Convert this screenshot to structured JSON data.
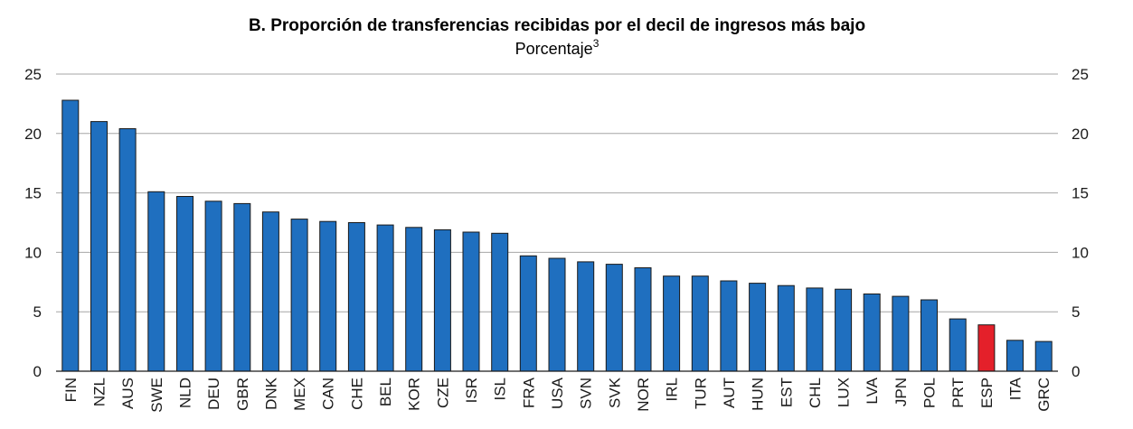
{
  "chart_data": {
    "type": "bar",
    "title": "B. Proporción de transferencias recibidas por el decil de ingresos más bajo",
    "subtitle": "Porcentaje",
    "subtitle_footnote": "3",
    "xlabel": "",
    "ylabel": "",
    "ylim": [
      0,
      25
    ],
    "yticks": [
      0,
      5,
      10,
      15,
      20,
      25
    ],
    "grid": true,
    "axis_sides": "left-and-right",
    "colors": {
      "default": "#1f6fbf",
      "highlight": "#e4202a",
      "grid": "#a6a6a6",
      "text": "#1a1a1a"
    },
    "highlight_category": "ESP",
    "categories": [
      "FIN",
      "NZL",
      "AUS",
      "SWE",
      "NLD",
      "DEU",
      "GBR",
      "DNK",
      "MEX",
      "CAN",
      "CHE",
      "BEL",
      "KOR",
      "CZE",
      "ISR",
      "ISL",
      "FRA",
      "USA",
      "SVN",
      "SVK",
      "NOR",
      "IRL",
      "TUR",
      "AUT",
      "HUN",
      "EST",
      "CHL",
      "LUX",
      "LVA",
      "JPN",
      "POL",
      "PRT",
      "ESP",
      "ITA",
      "GRC"
    ],
    "values": [
      22.8,
      21.0,
      20.4,
      15.1,
      14.7,
      14.3,
      14.1,
      13.4,
      12.8,
      12.6,
      12.5,
      12.3,
      12.1,
      11.9,
      11.7,
      11.6,
      9.7,
      9.5,
      9.2,
      9.0,
      8.7,
      8.0,
      8.0,
      7.6,
      7.4,
      7.2,
      7.0,
      6.9,
      6.5,
      6.3,
      6.0,
      4.4,
      3.9,
      2.6,
      2.5
    ]
  }
}
